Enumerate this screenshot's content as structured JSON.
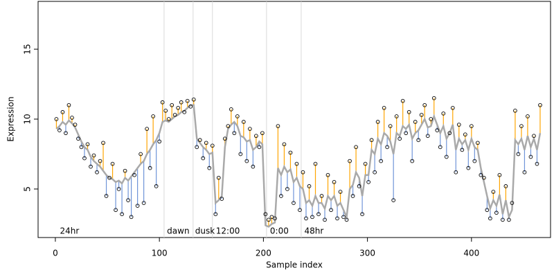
{
  "chart_data": {
    "type": "residual-scatter",
    "xlabel": "Sample index",
    "ylabel": "Expression",
    "xlim": [
      -16.6,
      476
    ],
    "ylim": [
      1.53,
      18.42
    ],
    "xticks": [
      0,
      100,
      200,
      300,
      400
    ],
    "yticks": [
      5,
      10,
      15
    ],
    "vlines": [
      104.5,
      132.4,
      151,
      203,
      236.3
    ],
    "annotations": [
      {
        "text": "24hr",
        "x": 3
      },
      {
        "text": "dawn",
        "x": 106
      },
      {
        "text": "dusk",
        "x": 133
      },
      {
        "text": "12:00",
        "x": 153
      },
      {
        "text": "0:00",
        "x": 205
      },
      {
        "text": "48hr",
        "x": 238
      }
    ],
    "point_color": "#000000",
    "fit_color": "#a9a9a9",
    "up_color": "#ffa500",
    "down_color": "#6f94d8",
    "vline_color": "#d9d9d9",
    "annotation_color": "#aaaaaa",
    "x": [
      1,
      4,
      7,
      10,
      13,
      16,
      19,
      22,
      25,
      28,
      31,
      34,
      37,
      40,
      43,
      46,
      49,
      52,
      55,
      58,
      61,
      64,
      67,
      70,
      73,
      76,
      79,
      82,
      85,
      88,
      91,
      94,
      97,
      100,
      103,
      106,
      109,
      112,
      115,
      118,
      121,
      124,
      127,
      130,
      133,
      136,
      139,
      142,
      145,
      148,
      151,
      154,
      157,
      160,
      163,
      166,
      169,
      172,
      175,
      178,
      181,
      184,
      187,
      190,
      193,
      196,
      199,
      202,
      205,
      208,
      211,
      214,
      217,
      220,
      223,
      226,
      229,
      232,
      235,
      238,
      241,
      244,
      247,
      250,
      253,
      256,
      259,
      262,
      265,
      268,
      271,
      274,
      277,
      280,
      283,
      286,
      289,
      292,
      295,
      298,
      301,
      304,
      307,
      310,
      313,
      316,
      319,
      322,
      325,
      328,
      331,
      334,
      337,
      340,
      343,
      346,
      349,
      352,
      355,
      358,
      361,
      364,
      367,
      370,
      373,
      376,
      379,
      382,
      385,
      388,
      391,
      394,
      397,
      400,
      403,
      406,
      409,
      412,
      415,
      418,
      421,
      424,
      427,
      430,
      433,
      436,
      439,
      442,
      445,
      448,
      451,
      454,
      457,
      460,
      463,
      466
    ],
    "observed": [
      10.0,
      9.2,
      10.5,
      9.0,
      11.0,
      10.1,
      9.6,
      8.6,
      8.0,
      7.2,
      8.2,
      6.6,
      7.4,
      6.2,
      7.0,
      8.3,
      4.5,
      5.8,
      6.8,
      3.5,
      5.0,
      3.2,
      6.3,
      4.2,
      3.0,
      6.0,
      3.8,
      7.5,
      4.0,
      9.3,
      6.5,
      10.2,
      5.2,
      8.4,
      11.2,
      10.6,
      10.0,
      11.0,
      10.3,
      10.8,
      11.2,
      10.5,
      11.3,
      10.9,
      11.4,
      8.0,
      8.5,
      7.2,
      8.3,
      6.5,
      8.1,
      3.2,
      5.8,
      4.3,
      8.6,
      9.5,
      10.7,
      9.0,
      10.2,
      7.5,
      9.8,
      7.0,
      9.3,
      6.6,
      8.8,
      8.0,
      9.0,
      3.2,
      2.8,
      3.0,
      2.9,
      9.5,
      4.5,
      8.2,
      5.0,
      7.6,
      4.0,
      6.8,
      3.5,
      6.2,
      2.9,
      5.2,
      3.0,
      6.8,
      3.2,
      4.5,
      2.8,
      6.0,
      3.5,
      5.5,
      2.9,
      4.8,
      3.0,
      2.8,
      7.0,
      4.5,
      8.0,
      5.2,
      3.2,
      6.8,
      5.5,
      8.5,
      6.2,
      9.8,
      7.0,
      10.8,
      8.0,
      9.5,
      4.2,
      10.2,
      8.6,
      11.3,
      9.0,
      10.5,
      7.0,
      9.8,
      8.5,
      10.3,
      11.0,
      8.8,
      10.0,
      11.5,
      9.2,
      8.0,
      10.4,
      7.3,
      9.0,
      10.8,
      6.2,
      9.6,
      7.8,
      8.9,
      6.5,
      9.5,
      7.0,
      8.3,
      6.0,
      5.8,
      3.5,
      2.9,
      4.8,
      3.3,
      6.0,
      2.8,
      5.2,
      2.8,
      4.0,
      10.6,
      7.5,
      9.5,
      6.2,
      10.2,
      7.3,
      8.8,
      6.8,
      11.0
    ],
    "fitted": [
      9.3,
      9.5,
      9.8,
      9.6,
      9.9,
      9.7,
      9.4,
      8.9,
      8.4,
      8.0,
      7.8,
      7.3,
      7.0,
      6.8,
      6.6,
      6.3,
      6.0,
      5.8,
      5.7,
      5.5,
      5.6,
      5.4,
      5.8,
      5.6,
      5.9,
      6.2,
      6.5,
      6.8,
      7.0,
      7.5,
      7.8,
      8.2,
      8.5,
      9.0,
      9.8,
      9.9,
      9.8,
      10.0,
      10.2,
      10.3,
      10.5,
      10.6,
      10.8,
      11.0,
      11.0,
      8.6,
      8.3,
      8.0,
      7.8,
      7.5,
      7.6,
      4.0,
      4.2,
      4.5,
      8.0,
      9.3,
      9.6,
      9.8,
      9.5,
      8.8,
      8.7,
      8.4,
      8.5,
      7.8,
      8.0,
      8.4,
      8.2,
      2.4,
      2.3,
      2.5,
      2.6,
      6.5,
      6.0,
      6.6,
      6.2,
      6.4,
      5.5,
      5.8,
      5.2,
      5.0,
      4.0,
      4.2,
      3.8,
      4.5,
      4.0,
      4.0,
      3.6,
      4.5,
      4.2,
      4.5,
      3.8,
      4.0,
      3.5,
      3.0,
      5.0,
      5.3,
      6.2,
      5.8,
      4.5,
      6.0,
      6.0,
      7.8,
      7.5,
      8.6,
      8.2,
      9.0,
      8.8,
      8.4,
      7.5,
      9.0,
      8.8,
      9.5,
      9.3,
      9.6,
      8.6,
      9.0,
      9.2,
      9.6,
      10.0,
      9.4,
      9.5,
      10.2,
      9.6,
      9.0,
      9.5,
      8.6,
      9.0,
      9.6,
      7.8,
      8.6,
      8.2,
      8.5,
      7.8,
      8.6,
      8.0,
      7.8,
      6.5,
      5.5,
      4.5,
      3.6,
      4.2,
      3.8,
      4.6,
      3.2,
      4.2,
      3.0,
      3.5,
      8.5,
      8.2,
      8.6,
      7.8,
      8.8,
      8.0,
      8.6,
      7.8,
      9.0
    ]
  }
}
